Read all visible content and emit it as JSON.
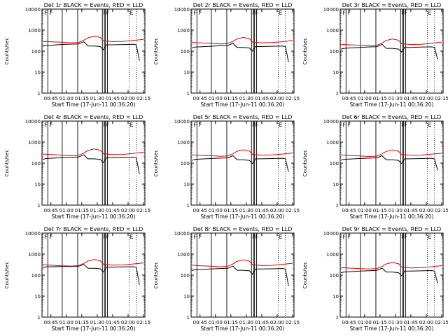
{
  "figure": {
    "x_axis_title": "Start Time (17-Jun-11 00:36:20)",
    "y_axis_title": "Counts/sec",
    "x_ticks": [
      "00:45",
      "01:00",
      "01:15",
      "01:30",
      "01:45",
      "02:00",
      "02:15"
    ],
    "y_ticks": [
      "1",
      "10",
      "100",
      "1000",
      "10000"
    ],
    "event_flags": [
      "F",
      "F",
      "F",
      "F",
      "E"
    ],
    "colors": {
      "events": "#000000",
      "lld": "#e00000",
      "axes": "#000000"
    }
  },
  "chart_data": [
    {
      "type": "line",
      "title": "Det 1r BLACK = Events, RED = LLD",
      "ylabel": "Counts/sec",
      "xlabel": "Start Time (17-Jun-11 00:36:20)",
      "y_scale": "log",
      "ylim": [
        1,
        10000
      ],
      "xlim": [
        "00:36",
        "02:16"
      ],
      "grid": false,
      "series": [
        {
          "name": "Events",
          "color": "#000000",
          "x": [
            "00:37",
            "00:40",
            "00:45",
            "00:55",
            "01:05",
            "01:12",
            "01:17",
            "01:21",
            "01:27",
            "01:33",
            "01:36",
            "01:39",
            "01:45",
            "01:55",
            "02:05",
            "02:08",
            "02:11"
          ],
          "values": [
            170,
            185,
            190,
            205,
            215,
            220,
            280,
            175,
            175,
            165,
            115,
            200,
            200,
            205,
            210,
            200,
            35
          ]
        },
        {
          "name": "LLD",
          "color": "#e00000",
          "x": [
            "00:37",
            "00:45",
            "00:55",
            "01:05",
            "01:12",
            "01:17",
            "01:21",
            "01:27",
            "01:33",
            "01:36",
            "01:45",
            "01:55",
            "02:05",
            "02:15"
          ],
          "values": [
            290,
            280,
            265,
            250,
            260,
            330,
            430,
            510,
            450,
            310,
            285,
            290,
            320,
            360
          ]
        }
      ]
    },
    {
      "type": "line",
      "title": "Det 2r BLACK = Events, RED = LLD",
      "ylabel": "Counts/sec",
      "xlabel": "Start Time (17-Jun-11 00:36:20)",
      "y_scale": "log",
      "ylim": [
        1,
        10000
      ],
      "xlim": [
        "00:36",
        "02:16"
      ],
      "grid": false,
      "series": [
        {
          "name": "Events",
          "color": "#000000",
          "x": [
            "00:37",
            "00:40",
            "00:45",
            "00:55",
            "01:05",
            "01:12",
            "01:17",
            "01:21",
            "01:27",
            "01:33",
            "01:36",
            "01:39",
            "01:45",
            "01:55",
            "02:05",
            "02:08",
            "02:11"
          ],
          "values": [
            140,
            155,
            160,
            170,
            180,
            185,
            235,
            150,
            150,
            140,
            100,
            165,
            165,
            170,
            175,
            165,
            30
          ]
        },
        {
          "name": "LLD",
          "color": "#e00000",
          "x": [
            "00:37",
            "00:45",
            "00:55",
            "01:05",
            "01:12",
            "01:17",
            "01:21",
            "01:27",
            "01:33",
            "01:36",
            "01:45",
            "01:55",
            "02:05",
            "02:15"
          ],
          "values": [
            260,
            245,
            235,
            220,
            230,
            290,
            380,
            450,
            395,
            270,
            250,
            255,
            280,
            320
          ]
        }
      ]
    },
    {
      "type": "line",
      "title": "Det 3r BLACK = Events, RED = LLD",
      "ylabel": "Counts/sec",
      "xlabel": "Start Time (17-Jun-11 00:36:20)",
      "y_scale": "log",
      "ylim": [
        1,
        10000
      ],
      "xlim": [
        "00:36",
        "02:16"
      ],
      "grid": false,
      "series": [
        {
          "name": "Events",
          "color": "#000000",
          "x": [
            "00:37",
            "00:40",
            "00:45",
            "00:55",
            "01:05",
            "01:12",
            "01:17",
            "01:21",
            "01:27",
            "01:33",
            "01:36",
            "01:39",
            "01:45",
            "01:55",
            "02:05",
            "02:08",
            "02:11"
          ],
          "values": [
            125,
            135,
            140,
            150,
            158,
            162,
            210,
            135,
            135,
            125,
            90,
            150,
            150,
            155,
            160,
            150,
            40
          ]
        },
        {
          "name": "LLD",
          "color": "#e00000",
          "x": [
            "00:37",
            "00:45",
            "00:55",
            "01:05",
            "01:12",
            "01:17",
            "01:21",
            "01:27",
            "01:33",
            "01:36",
            "01:45",
            "01:55",
            "02:05",
            "02:15"
          ],
          "values": [
            210,
            200,
            190,
            180,
            190,
            240,
            320,
            380,
            330,
            225,
            205,
            210,
            235,
            270
          ]
        }
      ]
    },
    {
      "type": "line",
      "title": "Det 4r BLACK = Events, RED = LLD",
      "ylabel": "Counts/sec",
      "xlabel": "Start Time (17-Jun-11 00:36:20)",
      "y_scale": "log",
      "ylim": [
        1,
        10000
      ],
      "xlim": [
        "00:36",
        "02:16"
      ],
      "grid": false,
      "series": [
        {
          "name": "Events",
          "color": "#000000",
          "x": [
            "00:37",
            "00:40",
            "00:45",
            "00:55",
            "01:05",
            "01:12",
            "01:17",
            "01:21",
            "01:27",
            "01:33",
            "01:36",
            "01:39",
            "01:45",
            "01:55",
            "02:05",
            "02:08",
            "02:11"
          ],
          "values": [
            150,
            165,
            170,
            180,
            190,
            195,
            250,
            160,
            160,
            150,
            105,
            180,
            180,
            185,
            190,
            180,
            30
          ]
        },
        {
          "name": "LLD",
          "color": "#e00000",
          "x": [
            "00:37",
            "00:45",
            "00:55",
            "01:05",
            "01:12",
            "01:17",
            "01:21",
            "01:27",
            "01:33",
            "01:36",
            "01:45",
            "01:55",
            "02:05",
            "02:15"
          ],
          "values": [
            270,
            255,
            240,
            225,
            235,
            300,
            400,
            470,
            410,
            280,
            255,
            260,
            290,
            330
          ]
        }
      ]
    },
    {
      "type": "line",
      "title": "Det 5r BLACK = Events, RED = LLD",
      "ylabel": "Counts/sec",
      "xlabel": "Start Time (17-Jun-11 00:36:20)",
      "y_scale": "log",
      "ylim": [
        1,
        10000
      ],
      "xlim": [
        "00:36",
        "02:16"
      ],
      "grid": false,
      "series": [
        {
          "name": "Events",
          "color": "#000000",
          "x": [
            "00:37",
            "00:40",
            "00:45",
            "00:55",
            "01:05",
            "01:12",
            "01:17",
            "01:21",
            "01:27",
            "01:33",
            "01:36",
            "01:39",
            "01:45",
            "01:55",
            "02:05",
            "02:08",
            "02:11"
          ],
          "values": [
            135,
            150,
            155,
            165,
            172,
            178,
            225,
            145,
            145,
            135,
            95,
            160,
            160,
            165,
            170,
            160,
            38
          ]
        },
        {
          "name": "LLD",
          "color": "#e00000",
          "x": [
            "00:37",
            "00:45",
            "00:55",
            "01:05",
            "01:12",
            "01:17",
            "01:21",
            "01:27",
            "01:33",
            "01:36",
            "01:45",
            "01:55",
            "02:05",
            "02:15"
          ],
          "values": [
            250,
            235,
            225,
            210,
            220,
            280,
            370,
            430,
            380,
            260,
            240,
            245,
            270,
            305
          ]
        }
      ]
    },
    {
      "type": "line",
      "title": "Det 6r BLACK = Events, RED = LLD",
      "ylabel": "Counts/sec",
      "xlabel": "Start Time (17-Jun-11 00:36:20)",
      "y_scale": "log",
      "ylim": [
        1,
        10000
      ],
      "xlim": [
        "00:36",
        "02:16"
      ],
      "grid": false,
      "series": [
        {
          "name": "Events",
          "color": "#000000",
          "x": [
            "00:37",
            "00:40",
            "00:45",
            "00:55",
            "01:05",
            "01:12",
            "01:17",
            "01:21",
            "01:27",
            "01:33",
            "01:36",
            "01:39",
            "01:45",
            "01:55",
            "02:05",
            "02:08",
            "02:11"
          ],
          "values": [
            140,
            150,
            155,
            165,
            172,
            178,
            225,
            145,
            145,
            135,
            95,
            160,
            160,
            165,
            170,
            160,
            45
          ]
        },
        {
          "name": "LLD",
          "color": "#e00000",
          "x": [
            "00:37",
            "00:45",
            "00:55",
            "01:05",
            "01:12",
            "01:17",
            "01:21",
            "01:27",
            "01:33",
            "01:36",
            "01:45",
            "01:55",
            "02:05",
            "02:15"
          ],
          "values": [
            245,
            230,
            220,
            205,
            215,
            275,
            360,
            420,
            370,
            255,
            235,
            240,
            265,
            300
          ]
        }
      ]
    },
    {
      "type": "line",
      "title": "Det 7r BLACK = Events, RED = LLD",
      "ylabel": "Counts/sec",
      "xlabel": "Start Time (17-Jun-11 00:36:20)",
      "y_scale": "log",
      "ylim": [
        1,
        10000
      ],
      "xlim": [
        "00:36",
        "02:16"
      ],
      "grid": false,
      "series": [
        {
          "name": "Events",
          "color": "#000000",
          "x": [
            "00:37",
            "00:40",
            "00:45",
            "00:55",
            "01:05",
            "01:12",
            "01:17",
            "01:21",
            "01:27",
            "01:33",
            "01:36",
            "01:39",
            "01:45",
            "01:55",
            "02:05",
            "02:08",
            "02:11"
          ],
          "values": [
            230,
            245,
            250,
            255,
            260,
            265,
            320,
            210,
            210,
            200,
            140,
            240,
            240,
            245,
            250,
            240,
            35
          ]
        },
        {
          "name": "LLD",
          "color": "#e00000",
          "x": [
            "00:37",
            "00:45",
            "00:55",
            "01:05",
            "01:12",
            "01:17",
            "01:21",
            "01:27",
            "01:33",
            "01:36",
            "01:45",
            "01:55",
            "02:05",
            "02:15"
          ],
          "values": [
            310,
            295,
            280,
            270,
            285,
            360,
            470,
            560,
            480,
            330,
            300,
            305,
            340,
            380
          ]
        }
      ]
    },
    {
      "type": "line",
      "title": "Det 8r BLACK = Events, RED = LLD",
      "ylabel": "Counts/sec",
      "xlabel": "Start Time (17-Jun-11 00:36:20)",
      "y_scale": "log",
      "ylim": [
        1,
        10000
      ],
      "xlim": [
        "00:36",
        "02:16"
      ],
      "grid": false,
      "series": [
        {
          "name": "Events",
          "color": "#000000",
          "x": [
            "00:37",
            "00:40",
            "00:45",
            "00:55",
            "01:05",
            "01:12",
            "01:17",
            "01:21",
            "01:27",
            "01:33",
            "01:36",
            "01:39",
            "01:45",
            "01:55",
            "02:05",
            "02:08",
            "02:11"
          ],
          "values": [
            165,
            180,
            185,
            195,
            205,
            210,
            270,
            170,
            170,
            160,
            110,
            195,
            195,
            200,
            205,
            195,
            30
          ]
        },
        {
          "name": "LLD",
          "color": "#e00000",
          "x": [
            "00:37",
            "00:45",
            "00:55",
            "01:05",
            "01:12",
            "01:17",
            "01:21",
            "01:27",
            "01:33",
            "01:36",
            "01:45",
            "01:55",
            "02:05",
            "02:15"
          ],
          "values": [
            300,
            280,
            265,
            250,
            265,
            340,
            450,
            530,
            460,
            315,
            285,
            290,
            325,
            365
          ]
        }
      ]
    },
    {
      "type": "line",
      "title": "Det 9r BLACK = Events, RED = LLD",
      "ylabel": "Counts/sec",
      "xlabel": "Start Time (17-Jun-11 00:36:20)",
      "y_scale": "log",
      "ylim": [
        1,
        10000
      ],
      "xlim": [
        "00:36",
        "02:16"
      ],
      "grid": false,
      "series": [
        {
          "name": "Events",
          "color": "#000000",
          "x": [
            "00:37",
            "00:40",
            "00:45",
            "00:55",
            "01:05",
            "01:12",
            "01:17",
            "01:21",
            "01:27",
            "01:33",
            "01:36",
            "01:39",
            "01:45",
            "01:55",
            "02:05",
            "02:08",
            "02:11"
          ],
          "values": [
            130,
            140,
            145,
            155,
            162,
            168,
            215,
            140,
            140,
            130,
            92,
            155,
            155,
            160,
            165,
            155,
            40
          ]
        },
        {
          "name": "LLD",
          "color": "#e00000",
          "x": [
            "00:37",
            "00:45",
            "00:55",
            "01:05",
            "01:12",
            "01:17",
            "01:21",
            "01:27",
            "01:33",
            "01:36",
            "01:45",
            "01:55",
            "02:05",
            "02:15"
          ],
          "values": [
            230,
            215,
            205,
            195,
            205,
            260,
            340,
            400,
            350,
            240,
            220,
            225,
            250,
            285
          ]
        }
      ]
    }
  ]
}
